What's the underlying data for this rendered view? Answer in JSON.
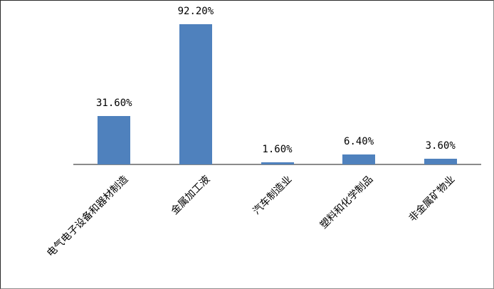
{
  "figure": {
    "kind": "excel-style-bar-chart",
    "background_color": "#ffffff",
    "title": ""
  },
  "chart_data": {
    "type": "bar",
    "categories": [
      "电气电子设备和器材制造",
      "金属加工液",
      "汽车制造业",
      "塑料和化学制品",
      "非金属矿物业"
    ],
    "values": [
      31.6,
      92.2,
      1.6,
      6.4,
      3.6
    ],
    "data_labels": [
      "31.60%",
      "92.20%",
      "1.60%",
      "6.40%",
      "3.60%"
    ],
    "series_count": 1,
    "title": "",
    "xlabel": "",
    "ylabel": "",
    "ylim": [
      0,
      100
    ],
    "grid": false,
    "legend": false,
    "value_axis_visible": false,
    "category_label_rotation_deg": 45,
    "bar_color": "#4F81BD",
    "axis_line_color": "#8a8a8a",
    "text_color": "#000000"
  }
}
